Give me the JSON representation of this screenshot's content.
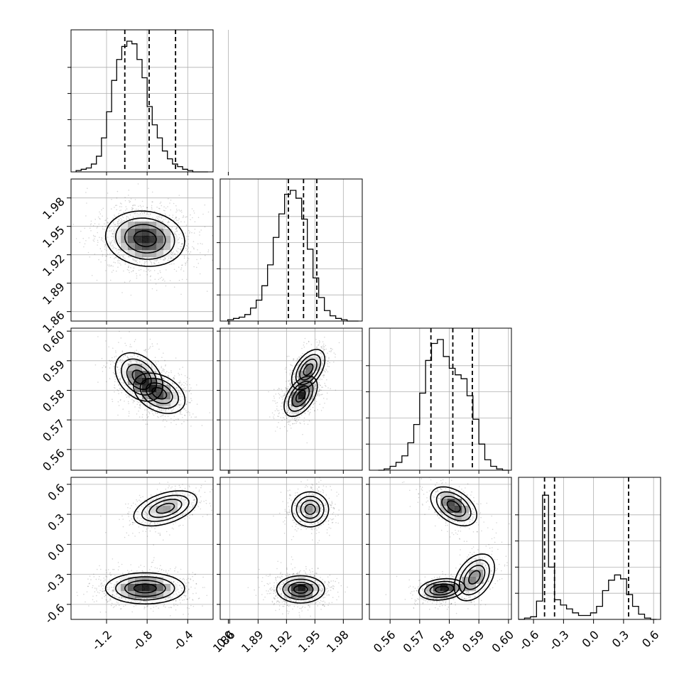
{
  "chart_data": {
    "type": "corner",
    "parameters": [
      {
        "range": [
          -1.55,
          -0.15
        ],
        "ticks": [
          -1.2,
          -0.8,
          -0.4,
          0.0
        ],
        "tick_labels": [
          "-1.2",
          "-0.8",
          "-0.4",
          "0.0"
        ],
        "quantiles": [
          -1.02,
          -0.78,
          -0.52
        ],
        "histogram": {
          "edges": [
            -1.5,
            -1.45,
            -1.4,
            -1.35,
            -1.3,
            -1.25,
            -1.2,
            -1.15,
            -1.1,
            -1.05,
            -1.0,
            -0.95,
            -0.9,
            -0.85,
            -0.8,
            -0.75,
            -0.7,
            -0.65,
            -0.6,
            -0.55,
            -0.5,
            -0.45,
            -0.4,
            -0.35,
            -0.3,
            -0.25,
            -0.2
          ],
          "counts": [
            0.01,
            0.02,
            0.03,
            0.06,
            0.12,
            0.26,
            0.46,
            0.7,
            0.86,
            0.96,
            1.0,
            0.98,
            0.86,
            0.72,
            0.5,
            0.36,
            0.26,
            0.16,
            0.1,
            0.06,
            0.04,
            0.02,
            0.01,
            0.0,
            0.0,
            0.0
          ]
        }
      },
      {
        "range": [
          1.85,
          2.0
        ],
        "ticks": [
          1.86,
          1.89,
          1.92,
          1.95,
          1.98
        ],
        "tick_labels": [
          "1.86",
          "1.89",
          "1.92",
          "1.95",
          "1.98"
        ],
        "quantiles": [
          1.922,
          1.938,
          1.952
        ],
        "histogram": {
          "edges": [
            1.858,
            1.864,
            1.87,
            1.876,
            1.882,
            1.888,
            1.894,
            1.9,
            1.906,
            1.912,
            1.918,
            1.924,
            1.93,
            1.936,
            1.942,
            1.948,
            1.954,
            1.96,
            1.966,
            1.972,
            1.978,
            1.984,
            1.99,
            1.996
          ],
          "counts": [
            0.01,
            0.02,
            0.03,
            0.05,
            0.1,
            0.16,
            0.27,
            0.43,
            0.64,
            0.82,
            0.97,
            1.0,
            0.94,
            0.78,
            0.55,
            0.33,
            0.18,
            0.08,
            0.04,
            0.02,
            0.01,
            0.0,
            0.0
          ]
        }
      },
      {
        "range": [
          0.553,
          0.601
        ],
        "ticks": [
          0.56,
          0.57,
          0.58,
          0.59,
          0.6
        ],
        "tick_labels": [
          "0.56",
          "0.57",
          "0.58",
          "0.59",
          "0.60"
        ],
        "quantiles": [
          0.5738,
          0.5812,
          0.5878
        ],
        "histogram": {
          "edges": [
            0.556,
            0.558,
            0.56,
            0.562,
            0.564,
            0.566,
            0.568,
            0.57,
            0.572,
            0.574,
            0.576,
            0.578,
            0.58,
            0.582,
            0.584,
            0.586,
            0.588,
            0.59,
            0.592,
            0.594,
            0.596,
            0.598,
            0.6
          ],
          "counts": [
            0.0,
            0.01,
            0.03,
            0.06,
            0.11,
            0.21,
            0.35,
            0.59,
            0.84,
            0.97,
            1.0,
            0.87,
            0.78,
            0.73,
            0.7,
            0.57,
            0.39,
            0.2,
            0.08,
            0.03,
            0.01,
            0.0
          ]
        }
      },
      {
        "range": [
          -0.75,
          0.67
        ],
        "ticks": [
          -0.6,
          -0.3,
          0.0,
          0.3,
          0.6
        ],
        "tick_labels": [
          "-0.6",
          "-0.3",
          "0.0",
          "0.3",
          "0.6"
        ],
        "quantiles": [
          -0.49,
          -0.39,
          0.35
        ],
        "histogram": {
          "edges": [
            -0.75,
            -0.69,
            -0.63,
            -0.57,
            -0.51,
            -0.45,
            -0.39,
            -0.33,
            -0.27,
            -0.21,
            -0.15,
            -0.09,
            -0.03,
            0.03,
            0.09,
            0.15,
            0.21,
            0.27,
            0.33,
            0.39,
            0.45,
            0.51,
            0.57,
            0.63
          ],
          "counts": [
            0.0,
            0.01,
            0.02,
            0.14,
            0.95,
            0.4,
            0.15,
            0.11,
            0.08,
            0.05,
            0.03,
            0.03,
            0.05,
            0.1,
            0.22,
            0.3,
            0.34,
            0.31,
            0.19,
            0.1,
            0.04,
            0.01,
            0.0
          ]
        }
      }
    ],
    "pairs": [
      {
        "row": 1,
        "col": 0,
        "modes": [
          {
            "mx": -0.82,
            "my": 1.937,
            "sx": 0.2,
            "sy": 0.015,
            "rho": -0.1,
            "w": 1.0
          }
        ]
      },
      {
        "row": 2,
        "col": 0,
        "modes": [
          {
            "mx": -0.88,
            "my": 0.5845,
            "sx": 0.12,
            "sy": 0.0042,
            "rho": -0.35,
            "w": 0.55
          },
          {
            "mx": -0.68,
            "my": 0.579,
            "sx": 0.13,
            "sy": 0.0035,
            "rho": -0.35,
            "w": 0.55
          }
        ]
      },
      {
        "row": 2,
        "col": 1,
        "modes": [
          {
            "mx": 1.943,
            "my": 0.587,
            "sx": 0.009,
            "sy": 0.0035,
            "rho": 0.5,
            "w": 0.45
          },
          {
            "mx": 1.935,
            "my": 0.578,
            "sx": 0.009,
            "sy": 0.0035,
            "rho": 0.5,
            "w": 0.6
          }
        ]
      },
      {
        "row": 3,
        "col": 0,
        "modes": [
          {
            "mx": -0.62,
            "my": 0.36,
            "sx": 0.16,
            "sy": 0.09,
            "rho": 0.45,
            "w": 0.4
          },
          {
            "mx": -0.82,
            "my": -0.44,
            "sx": 0.2,
            "sy": 0.08,
            "rho": 0.0,
            "w": 0.65
          }
        ]
      },
      {
        "row": 3,
        "col": 1,
        "modes": [
          {
            "mx": 1.945,
            "my": 0.35,
            "sx": 0.01,
            "sy": 0.09,
            "rho": 0.0,
            "w": 0.4
          },
          {
            "mx": 1.935,
            "my": -0.45,
            "sx": 0.013,
            "sy": 0.07,
            "rho": 0.0,
            "w": 0.65
          }
        ]
      },
      {
        "row": 3,
        "col": 2,
        "modes": [
          {
            "mx": 0.5815,
            "my": 0.38,
            "sx": 0.004,
            "sy": 0.1,
            "rho": -0.45,
            "w": 0.4
          },
          {
            "mx": 0.5775,
            "my": -0.45,
            "sx": 0.004,
            "sy": 0.055,
            "rho": 0.2,
            "w": 0.45
          },
          {
            "mx": 0.5885,
            "my": -0.33,
            "sx": 0.0035,
            "sy": 0.12,
            "rho": 0.4,
            "w": 0.3
          }
        ]
      }
    ],
    "contour_levels": [
      "0.5-sigma",
      "1-sigma",
      "1.5-sigma",
      "2-sigma"
    ],
    "grid": true,
    "colors": {
      "line": "#000000",
      "grid": "#b0b0b0",
      "points": "#000000"
    }
  }
}
